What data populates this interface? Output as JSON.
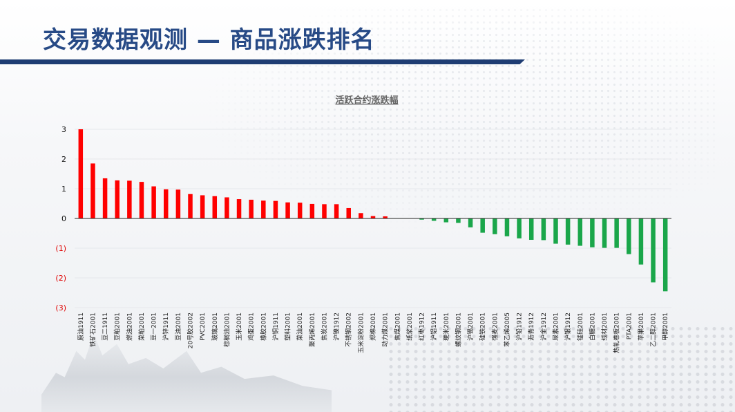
{
  "page": {
    "title": "交易数据观测 — 商品涨跌排名"
  },
  "colors": {
    "up": "#ff0000",
    "down": "#1aa64a",
    "neg_tick": "#e00000",
    "title_blue": "#274a86",
    "band": "#1f3d73"
  },
  "chart_data": {
    "type": "bar",
    "title": "活跃合约涨跌幅",
    "xlabel": "",
    "ylabel": "",
    "ylim": [
      -3,
      3
    ],
    "yticks": [
      {
        "value": 3,
        "label": "3"
      },
      {
        "value": 2,
        "label": "2"
      },
      {
        "value": 1,
        "label": "1"
      },
      {
        "value": 0,
        "label": "0"
      },
      {
        "value": -1,
        "label": "(1)"
      },
      {
        "value": -2,
        "label": "(2)"
      },
      {
        "value": -3,
        "label": "(3)"
      }
    ],
    "grid": true,
    "categories": [
      "原油1911",
      "铁矿石2001",
      "豆二1911",
      "豆粕2001",
      "燃油2001",
      "菜粕2001",
      "豆一2001",
      "沪锌1911",
      "豆油2001",
      "20号胶2002",
      "PVC2001",
      "玻璃2001",
      "棕榈油2001",
      "玉米2001",
      "鸡蛋2001",
      "橡胶2001",
      "沪铜1911",
      "塑料2001",
      "菜油2001",
      "聚丙烯2001",
      "焦炭2001",
      "沪镍1912",
      "不锈钢2002",
      "玉米淀粉2001",
      "郑棉2001",
      "动力煤2001",
      "焦煤2001",
      "纸浆2001",
      "红枣1912",
      "沪铝1911",
      "粳米2001",
      "螺纹钢2001",
      "沪锡2001",
      "硅铁2001",
      "强麦2001",
      "苯乙烯2005",
      "沪铅1912",
      "沥青1912",
      "沪金1912",
      "尿素2001",
      "沪银1912",
      "锰硅2001",
      "白糖2001",
      "线材2001",
      "热轧卷板2001",
      "PTA2001",
      "苹果2001",
      "乙二醇2001",
      "甲醇2001"
    ],
    "values": [
      3.0,
      1.85,
      1.35,
      1.28,
      1.27,
      1.23,
      1.08,
      0.98,
      0.97,
      0.82,
      0.78,
      0.75,
      0.71,
      0.65,
      0.63,
      0.6,
      0.59,
      0.54,
      0.53,
      0.49,
      0.48,
      0.48,
      0.35,
      0.18,
      0.08,
      0.07,
      0.0,
      0.0,
      -0.04,
      -0.08,
      -0.13,
      -0.15,
      -0.3,
      -0.48,
      -0.53,
      -0.6,
      -0.67,
      -0.72,
      -0.73,
      -0.85,
      -0.88,
      -0.92,
      -0.97,
      -0.99,
      -0.99,
      -1.2,
      -1.55,
      -2.15,
      -2.45
    ]
  }
}
